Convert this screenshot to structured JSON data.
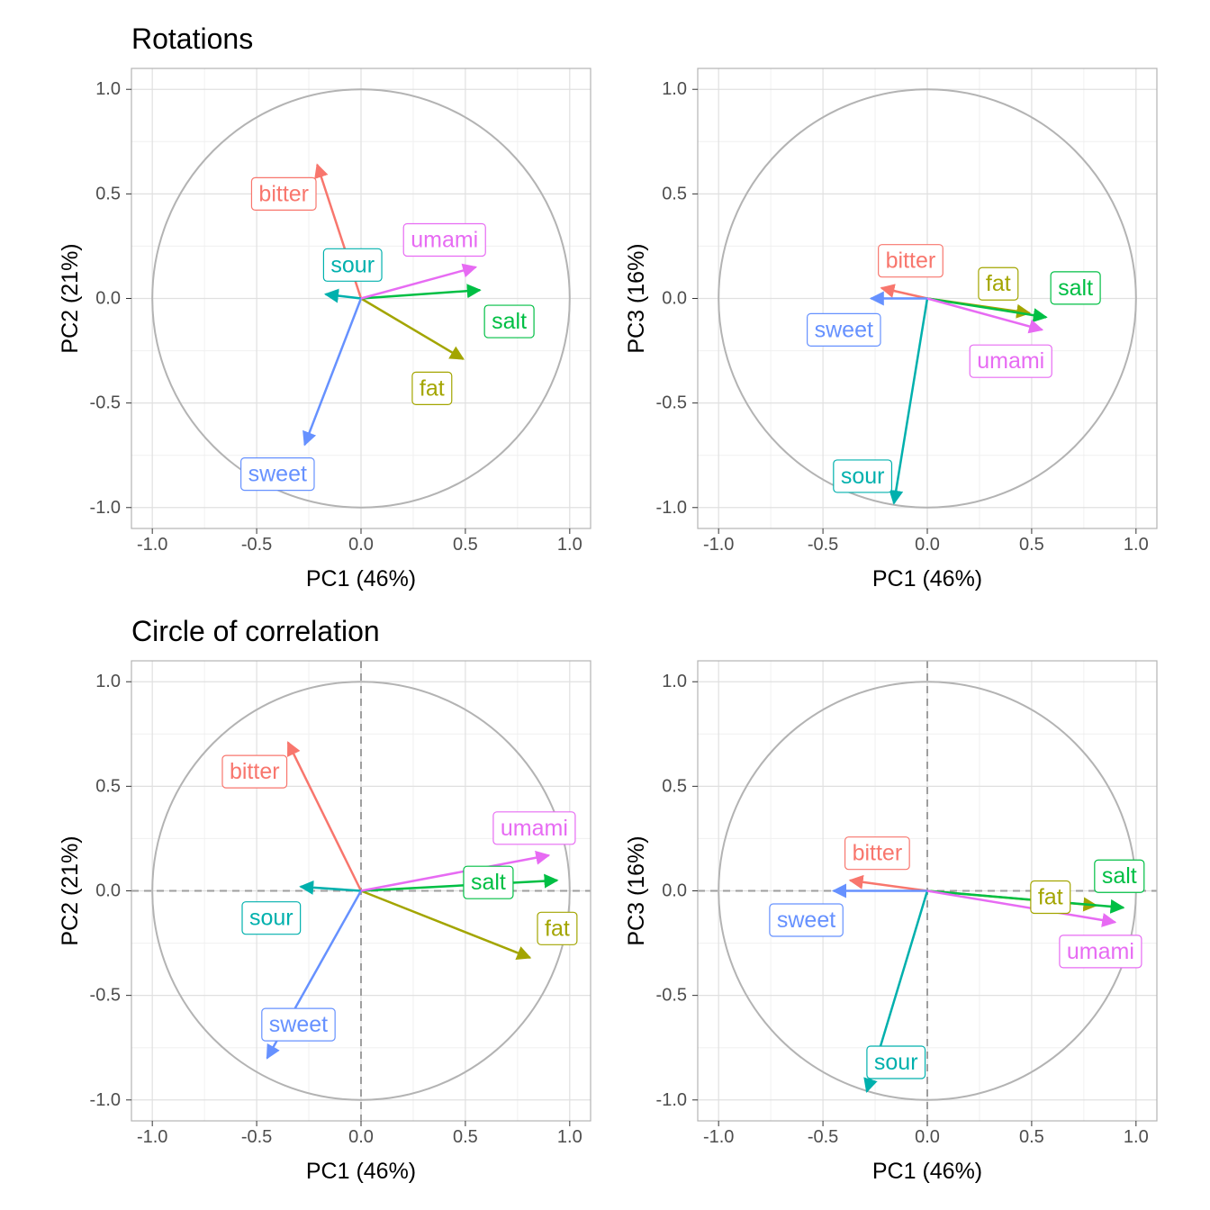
{
  "colors": {
    "bitter": "#F8766D",
    "fat": "#A3A500",
    "salt": "#00BF44",
    "sour": "#00B0AD",
    "sweet": "#6691FF",
    "umami": "#E76BF3",
    "circle": "#b3b3b3",
    "panel_border": "#b3b3b3",
    "grid_major": "#e0e0e0",
    "grid_minor": "#f0f0f0",
    "ref_line": "#9e9e9e"
  },
  "ticks": {
    "x": [
      -1.0,
      -0.5,
      0.0,
      0.5,
      1.0
    ],
    "y": [
      -1.0,
      -0.5,
      0.0,
      0.5,
      1.0
    ],
    "x_labels": [
      "-1.0",
      "-0.5",
      "0.0",
      "0.5",
      "1.0"
    ],
    "y_labels": [
      "-1.0",
      "-0.5",
      "0.0",
      "0.5",
      "1.0"
    ]
  },
  "chart_data": [
    {
      "type": "scatter",
      "title": "Rotations",
      "xlabel": "PC1 (46%)",
      "ylabel": "PC2 (21%)",
      "xlim": [
        -1.1,
        1.1
      ],
      "ylim": [
        -1.1,
        1.1
      ],
      "unit_circle": true,
      "reference_lines": false,
      "vectors": [
        {
          "name": "bitter",
          "x": -0.21,
          "y": 0.64,
          "label_x": -0.37,
          "label_y": 0.5
        },
        {
          "name": "fat",
          "x": 0.49,
          "y": -0.29,
          "label_x": 0.34,
          "label_y": -0.43
        },
        {
          "name": "salt",
          "x": 0.57,
          "y": 0.04,
          "label_x": 0.71,
          "label_y": -0.11
        },
        {
          "name": "sour",
          "x": -0.17,
          "y": 0.02,
          "label_x": -0.04,
          "label_y": 0.16
        },
        {
          "name": "sweet",
          "x": -0.27,
          "y": -0.7,
          "label_x": -0.4,
          "label_y": -0.84
        },
        {
          "name": "umami",
          "x": 0.55,
          "y": 0.15,
          "label_x": 0.4,
          "label_y": 0.28
        }
      ]
    },
    {
      "type": "scatter",
      "title": "",
      "xlabel": "PC1 (46%)",
      "ylabel": "PC3 (16%)",
      "xlim": [
        -1.1,
        1.1
      ],
      "ylim": [
        -1.1,
        1.1
      ],
      "unit_circle": true,
      "reference_lines": false,
      "vectors": [
        {
          "name": "bitter",
          "x": -0.22,
          "y": 0.05,
          "label_x": -0.08,
          "label_y": 0.18
        },
        {
          "name": "fat",
          "x": 0.49,
          "y": -0.07,
          "label_x": 0.34,
          "label_y": 0.07
        },
        {
          "name": "salt",
          "x": 0.57,
          "y": -0.09,
          "label_x": 0.71,
          "label_y": 0.05
        },
        {
          "name": "sour",
          "x": -0.16,
          "y": -0.98,
          "label_x": -0.31,
          "label_y": -0.85
        },
        {
          "name": "sweet",
          "x": -0.27,
          "y": 0.0,
          "label_x": -0.4,
          "label_y": -0.15
        },
        {
          "name": "umami",
          "x": 0.55,
          "y": -0.15,
          "label_x": 0.4,
          "label_y": -0.3
        }
      ]
    },
    {
      "type": "scatter",
      "title": "Circle of correlation",
      "xlabel": "PC1 (46%)",
      "ylabel": "PC2 (21%)",
      "xlim": [
        -1.1,
        1.1
      ],
      "ylim": [
        -1.1,
        1.1
      ],
      "unit_circle": true,
      "reference_lines": true,
      "vectors": [
        {
          "name": "bitter",
          "x": -0.35,
          "y": 0.71,
          "label_x": -0.51,
          "label_y": 0.57
        },
        {
          "name": "fat",
          "x": 0.81,
          "y": -0.32,
          "label_x": 0.94,
          "label_y": -0.18
        },
        {
          "name": "salt",
          "x": 0.94,
          "y": 0.05,
          "label_x": 0.61,
          "label_y": 0.04
        },
        {
          "name": "sour",
          "x": -0.29,
          "y": 0.02,
          "label_x": -0.43,
          "label_y": -0.13
        },
        {
          "name": "sweet",
          "x": -0.45,
          "y": -0.8,
          "label_x": -0.3,
          "label_y": -0.64
        },
        {
          "name": "umami",
          "x": 0.9,
          "y": 0.17,
          "label_x": 0.83,
          "label_y": 0.3
        }
      ]
    },
    {
      "type": "scatter",
      "title": "",
      "xlabel": "PC1 (46%)",
      "ylabel": "PC3 (16%)",
      "xlim": [
        -1.1,
        1.1
      ],
      "ylim": [
        -1.1,
        1.1
      ],
      "unit_circle": true,
      "reference_lines": true,
      "vectors": [
        {
          "name": "bitter",
          "x": -0.37,
          "y": 0.05,
          "label_x": -0.24,
          "label_y": 0.18
        },
        {
          "name": "fat",
          "x": 0.81,
          "y": -0.07,
          "label_x": 0.59,
          "label_y": -0.03
        },
        {
          "name": "salt",
          "x": 0.94,
          "y": -0.08,
          "label_x": 0.92,
          "label_y": 0.07
        },
        {
          "name": "sour",
          "x": -0.29,
          "y": -0.96,
          "label_x": -0.15,
          "label_y": -0.82
        },
        {
          "name": "sweet",
          "x": -0.45,
          "y": 0.0,
          "label_x": -0.58,
          "label_y": -0.14
        },
        {
          "name": "umami",
          "x": 0.9,
          "y": -0.15,
          "label_x": 0.83,
          "label_y": -0.29
        }
      ]
    }
  ]
}
